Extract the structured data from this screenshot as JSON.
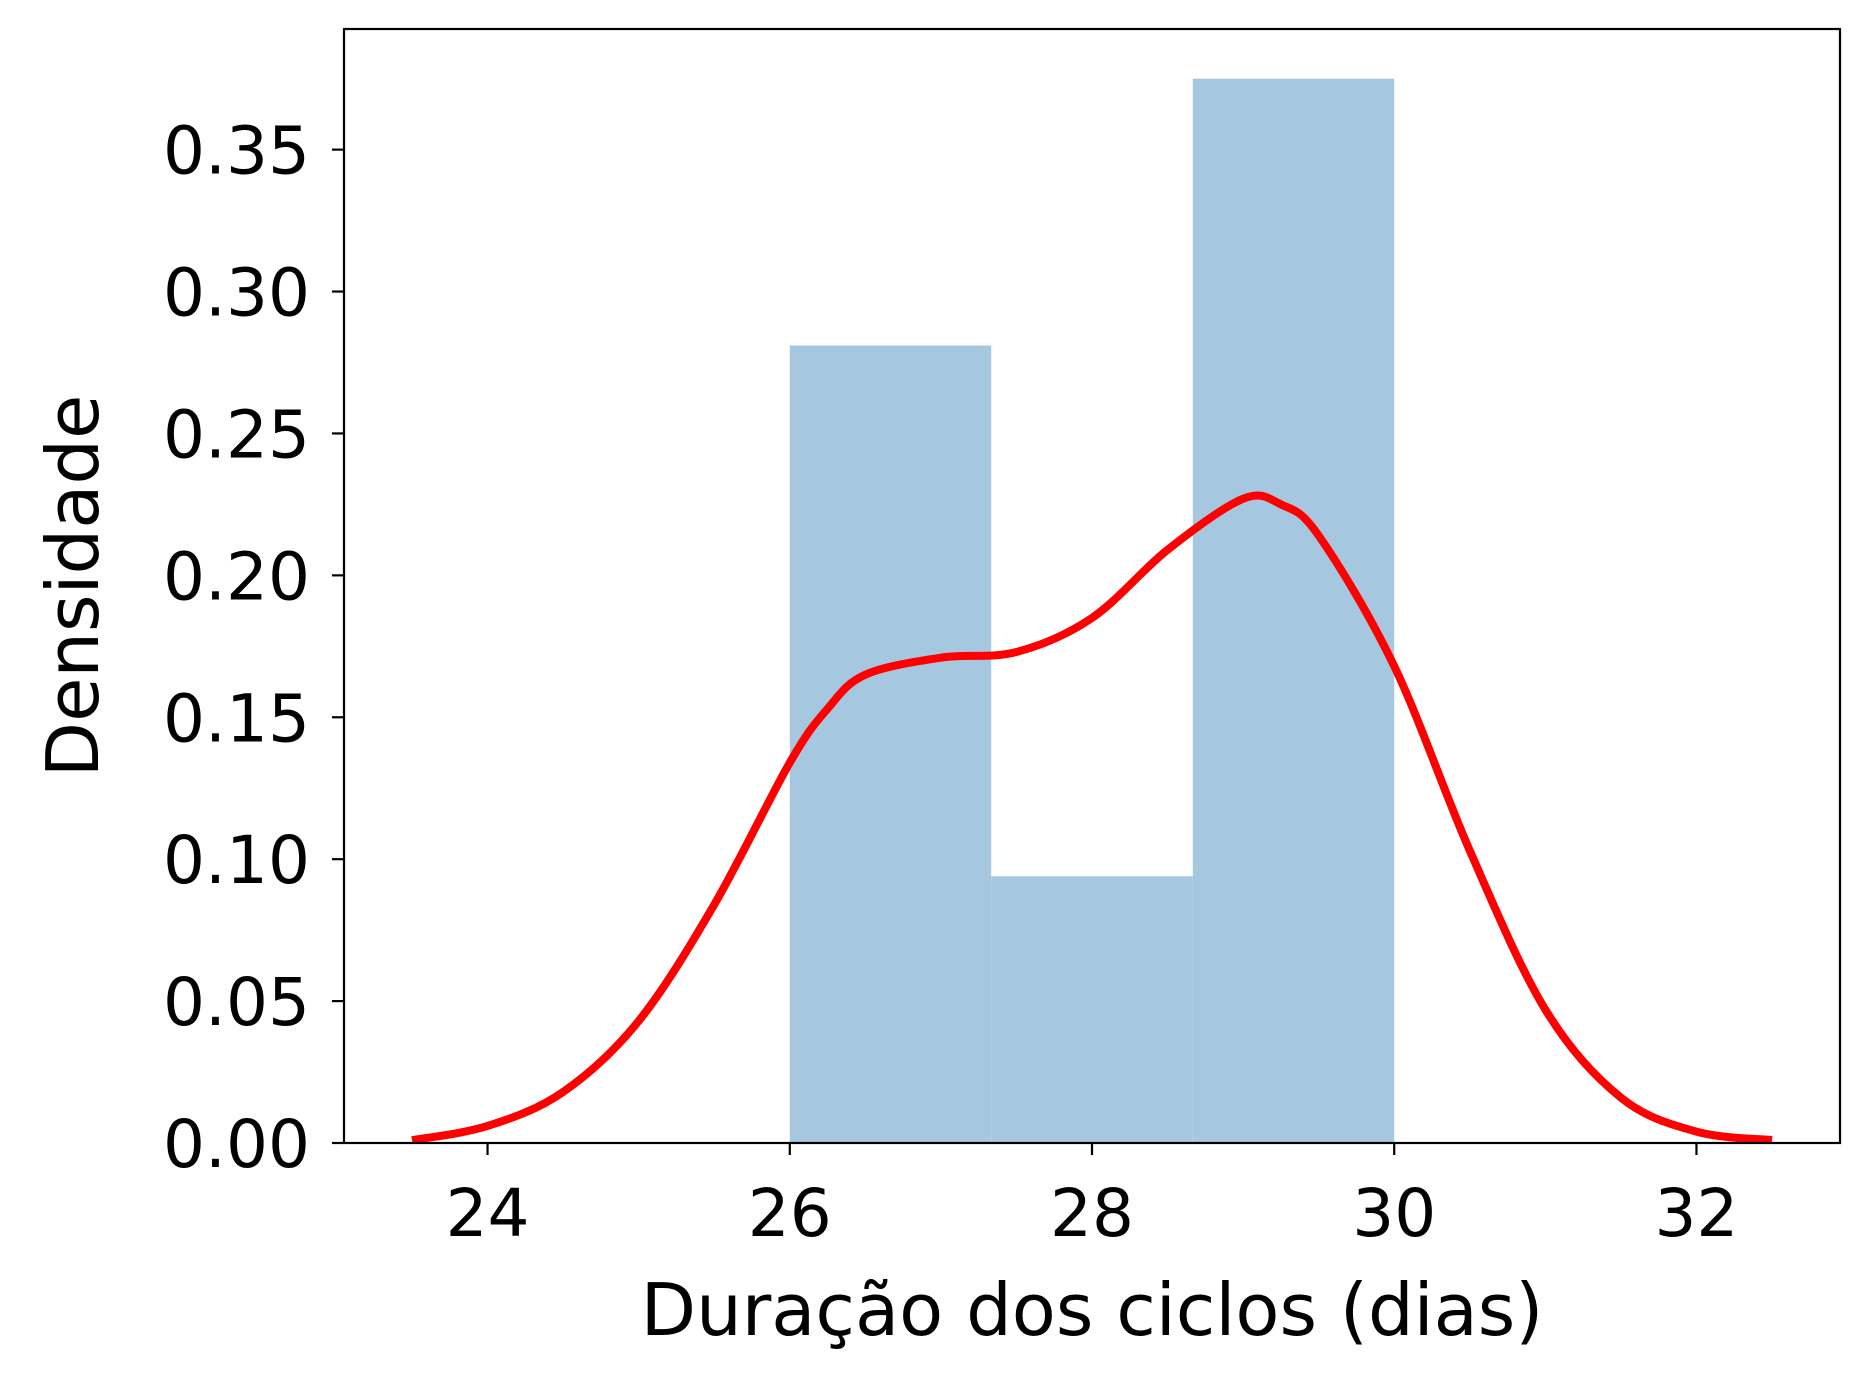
{
  "chart_data": {
    "type": "bar",
    "xlabel": "Duração dos ciclos (dias)",
    "ylabel": "Densidade",
    "xlim": [
      23.05,
      32.95
    ],
    "ylim": [
      0,
      0.3925
    ],
    "x_ticks": [
      24,
      26,
      28,
      30,
      32
    ],
    "x_tick_labels": [
      "24",
      "26",
      "28",
      "30",
      "32"
    ],
    "y_ticks": [
      0,
      0.05,
      0.1,
      0.15,
      0.2,
      0.25,
      0.3,
      0.35
    ],
    "y_tick_labels": [
      "0.00",
      "0.05",
      "0.10",
      "0.15",
      "0.20",
      "0.25",
      "0.30",
      "0.35"
    ],
    "grid": false,
    "histogram": {
      "color": "#a6c7e0",
      "bins": [
        {
          "x0": 26.0,
          "x1": 27.333,
          "density": 0.281
        },
        {
          "x0": 27.333,
          "x1": 28.667,
          "density": 0.094
        },
        {
          "x0": 28.667,
          "x1": 30.0,
          "density": 0.375
        }
      ]
    },
    "density_curve": {
      "color": "#ff0000",
      "points": [
        [
          23.5,
          0.001
        ],
        [
          24.0,
          0.006
        ],
        [
          24.5,
          0.018
        ],
        [
          25.0,
          0.043
        ],
        [
          25.5,
          0.084
        ],
        [
          26.0,
          0.134
        ],
        [
          26.25,
          0.153
        ],
        [
          26.5,
          0.165
        ],
        [
          27.0,
          0.171
        ],
        [
          27.5,
          0.173
        ],
        [
          28.0,
          0.185
        ],
        [
          28.5,
          0.209
        ],
        [
          29.0,
          0.227
        ],
        [
          29.25,
          0.225
        ],
        [
          29.5,
          0.214
        ],
        [
          30.0,
          0.168
        ],
        [
          30.5,
          0.103
        ],
        [
          31.0,
          0.047
        ],
        [
          31.5,
          0.016
        ],
        [
          32.0,
          0.004
        ],
        [
          32.5,
          0.001
        ]
      ]
    }
  }
}
